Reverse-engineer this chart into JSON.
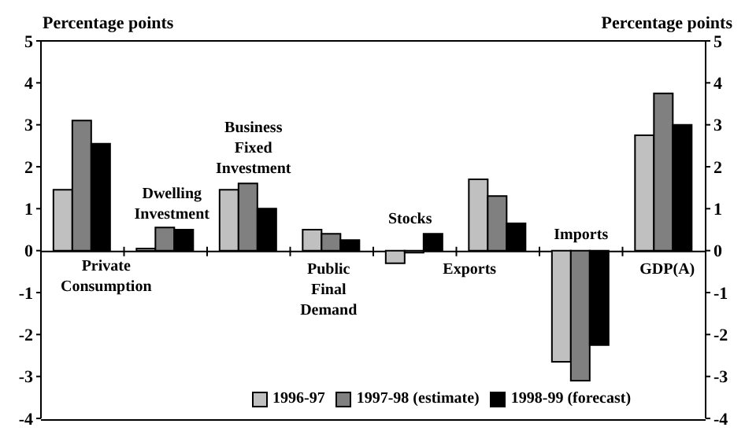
{
  "chart_data": {
    "type": "bar",
    "ylabel": "Percentage points",
    "y2label": "Percentage points",
    "categories": [
      "Private Consumption",
      "Dwelling Investment",
      "Business Fixed Investment",
      "Public Final Demand",
      "Stocks",
      "Exports",
      "Imports",
      "GDP(A)"
    ],
    "series": [
      {
        "name": "1996-97",
        "color": "#c0c0c0",
        "values": [
          1.45,
          0.05,
          1.45,
          0.5,
          -0.3,
          1.7,
          -2.65,
          2.75
        ]
      },
      {
        "name": "1997-98 (estimate)",
        "color": "#808080",
        "values": [
          3.1,
          0.55,
          1.6,
          0.4,
          -0.05,
          1.3,
          -3.1,
          3.75
        ]
      },
      {
        "name": "1998-99 (forecast)",
        "color": "#000000",
        "values": [
          2.55,
          0.5,
          1.0,
          0.25,
          0.4,
          0.65,
          -2.25,
          3.0
        ]
      }
    ],
    "ylim": [
      -4,
      5
    ],
    "yticks": [
      -4,
      -3,
      -2,
      -1,
      0,
      1,
      2,
      3,
      4,
      5
    ],
    "y2lim": [
      -4,
      5
    ],
    "y2ticks": [
      -4,
      -3,
      -2,
      -1,
      0,
      1,
      2,
      3,
      4,
      5
    ],
    "legend": "bottom",
    "grid": false
  }
}
